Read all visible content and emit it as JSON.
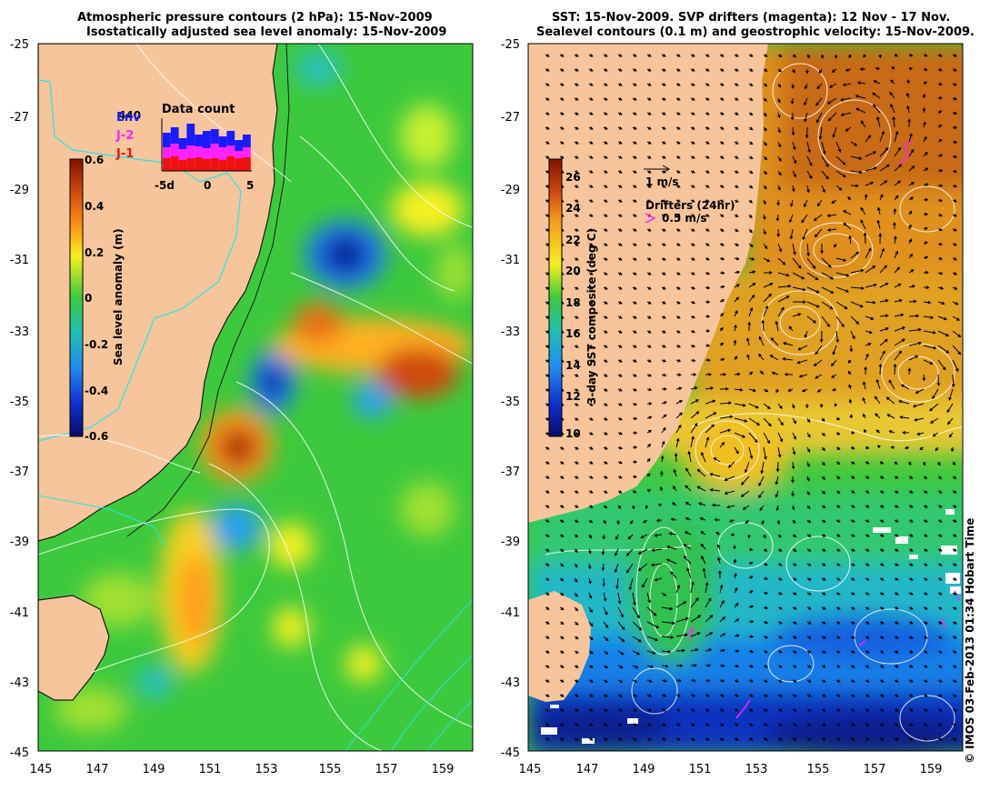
{
  "left_panel": {
    "title_line1": "Atmospheric pressure contours (2 hPa): 15-Nov-2009",
    "title_line2": "Isostatically adjusted sea level anomaly: 15-Nov-2009",
    "colorbar": {
      "label": "Sea level anomaly (m)",
      "ticks": [
        "0.6",
        "0.4",
        "0.2",
        "0",
        "-0.2",
        "-0.4",
        "-0.6"
      ]
    },
    "inset": {
      "title": "Data count",
      "max_label": "440",
      "legend": [
        {
          "name": "Env",
          "color": "#1a1aff"
        },
        {
          "name": "J-2",
          "color": "#ff22ff"
        },
        {
          "name": "J-1",
          "color": "#ee1111"
        }
      ],
      "x_ticks": [
        "-5d",
        "0",
        "5"
      ]
    }
  },
  "right_panel": {
    "title_line1": "SST: 15-Nov-2009. SVP drifters (magenta): 12 Nov - 17 Nov.",
    "title_line2": "Sealevel contours (0.1 m) and geostrophic velocity: 15-Nov-2009.",
    "colorbar": {
      "label": "3-day SST composite (deg C)",
      "ticks": [
        "26",
        "24",
        "22",
        "20",
        "18",
        "16",
        "14",
        "12",
        "10"
      ]
    },
    "velocity_key": "1 m/s",
    "drifter_key_title": "Drifters (24hr)",
    "drifter_key_value": "0.5 m/s"
  },
  "axes": {
    "lat_labels": [
      "-25",
      "-27",
      "-29",
      "-31",
      "-33",
      "-35",
      "-37",
      "-39",
      "-41",
      "-43",
      "-45"
    ],
    "lon_labels": [
      "145",
      "147",
      "149",
      "151",
      "153",
      "155",
      "157",
      "159"
    ]
  },
  "credit": "© IMOS 03-Feb-2013 01:34 Hobart Time",
  "colors": {
    "land": "#f6c59b",
    "ocean_base": "#3dc93d",
    "coast_line": "#1a1a1a",
    "bathy_line": "#25e6e6",
    "drifter": "#ff22ff"
  }
}
